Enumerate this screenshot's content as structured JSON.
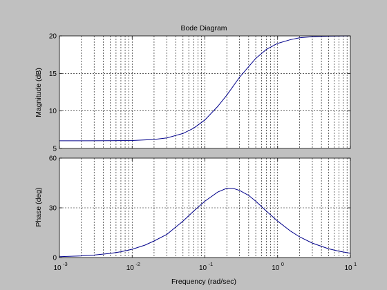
{
  "figure": {
    "background": "#c0c0c0",
    "plot_background": "#ffffff",
    "line_color": "#00008b"
  },
  "chart_data": [
    {
      "type": "line",
      "id": "magnitude",
      "title": "Bode Diagram",
      "xlabel": "",
      "ylabel": "Magnitude (dB)",
      "xscale": "log",
      "xlim": [
        0.001,
        10
      ],
      "ylim": [
        5,
        20
      ],
      "yticks": [
        5,
        10,
        15,
        20
      ],
      "grid": true,
      "x": [
        0.001,
        0.002,
        0.005,
        0.01,
        0.02,
        0.03,
        0.05,
        0.07,
        0.1,
        0.15,
        0.2,
        0.3,
        0.5,
        0.7,
        1,
        1.5,
        2,
        3,
        5,
        10
      ],
      "y": [
        6.02,
        6.02,
        6.03,
        6.06,
        6.2,
        6.4,
        7.0,
        7.7,
        8.8,
        10.6,
        12.1,
        14.5,
        17.0,
        18.2,
        19.0,
        19.5,
        19.75,
        19.9,
        19.97,
        20.0
      ]
    },
    {
      "type": "line",
      "id": "phase",
      "title": "",
      "xlabel": "Frequency  (rad/sec)",
      "ylabel": "Phase (deg)",
      "xscale": "log",
      "xlim": [
        0.001,
        10
      ],
      "ylim": [
        0,
        60
      ],
      "yticks": [
        0,
        30,
        60
      ],
      "xticks": [
        "10^-3",
        "10^-2",
        "10^-1",
        "10^0",
        "10^1"
      ],
      "grid": true,
      "x": [
        0.001,
        0.002,
        0.003,
        0.005,
        0.007,
        0.01,
        0.015,
        0.02,
        0.03,
        0.05,
        0.07,
        0.1,
        0.15,
        0.2,
        0.25,
        0.3,
        0.4,
        0.5,
        0.7,
        1,
        1.5,
        2,
        3,
        5,
        7,
        10
      ],
      "y": [
        0.5,
        1.0,
        1.5,
        2.5,
        3.5,
        5.0,
        7.5,
        10,
        14,
        22,
        28,
        34,
        39.5,
        41.8,
        41.6,
        40.5,
        37.5,
        34,
        28,
        22,
        16,
        12.5,
        8.7,
        5.3,
        3.8,
        2.6
      ]
    }
  ]
}
